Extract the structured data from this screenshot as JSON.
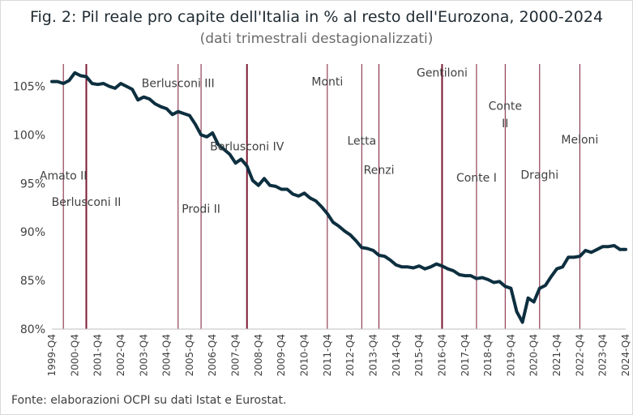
{
  "chart_data": {
    "type": "line",
    "title": "Fig. 2: Pil reale pro capite dell'Italia in % al resto dell'Eurozona, 2000-2024",
    "subtitle": "(dati trimestrali destagionalizzati)",
    "source": "Fonte: elaborazioni OCPI su dati Istat e Eurostat.",
    "ylim": [
      80,
      107.3
    ],
    "yticks": [
      80,
      85,
      90,
      95,
      100,
      105
    ],
    "ytick_format": "percent",
    "xticks": [
      "1999-Q4",
      "2000-Q4",
      "2001-Q4",
      "2002-Q4",
      "2003-Q4",
      "2004-Q4",
      "2005-Q4",
      "2006-Q4",
      "2007-Q4",
      "2008-Q4",
      "2009-Q4",
      "2010-Q4",
      "2011-Q4",
      "2012-Q4",
      "2013-Q4",
      "2014-Q4",
      "2015-Q4",
      "2016-Q4",
      "2017-Q4",
      "2018-Q4",
      "2019-Q4",
      "2020-Q4",
      "2021-Q4",
      "2022-Q4",
      "2023-Q4",
      "2024-Q4"
    ],
    "x_start": "1999-Q4",
    "line_color": "#0d2f3f",
    "gov_line_color": "#7a1a33",
    "series": [
      {
        "values": [
          105.5,
          105.5,
          105.3,
          105.6,
          106.4,
          106.1,
          106.0,
          105.3,
          105.2,
          105.3,
          105.0,
          104.8,
          105.3,
          105.0,
          104.7,
          103.6,
          103.9,
          103.7,
          103.2,
          102.9,
          102.7,
          102.1,
          102.4,
          102.2,
          102.0,
          101.1,
          100.0,
          99.8,
          100.2,
          99.0,
          98.5,
          98.0,
          97.1,
          97.5,
          96.8,
          95.3,
          94.8,
          95.5,
          94.8,
          94.7,
          94.4,
          94.4,
          93.9,
          93.7,
          94.0,
          93.5,
          93.2,
          92.6,
          91.9,
          91.0,
          90.6,
          90.1,
          89.7,
          89.1,
          88.4,
          88.3,
          88.1,
          87.6,
          87.5,
          87.1,
          86.6,
          86.4,
          86.4,
          86.3,
          86.5,
          86.2,
          86.4,
          86.7,
          86.5,
          86.2,
          86.0,
          85.6,
          85.5,
          85.5,
          85.2,
          85.3,
          85.1,
          84.8,
          84.9,
          84.4,
          84.2,
          81.8,
          80.7,
          83.2,
          82.8,
          84.2,
          84.5,
          85.4,
          86.2,
          86.4,
          87.4,
          87.4,
          87.5,
          88.1,
          87.9,
          88.2,
          88.5,
          88.5,
          88.6,
          88.2,
          88.2
        ]
      }
    ],
    "governments": [
      {
        "name": "Amato II",
        "start": "2000-Q2",
        "weight": "thin",
        "label_lines": [
          "Amato II"
        ],
        "label_level": 95.4
      },
      {
        "name": "Berlusconi II",
        "start": "2001-Q2",
        "weight": "thick",
        "label_lines": [
          "Berlusconi II"
        ],
        "label_level": 92.7
      },
      {
        "name": "Berlusconi III",
        "start": "2005-Q2",
        "weight": "thin",
        "label_lines": [
          "Berlusconi III"
        ],
        "label_level": 104.9
      },
      {
        "name": "Prodi II",
        "start": "2006-Q2",
        "weight": "thin",
        "label_lines": [
          "Prodi II"
        ],
        "label_level": 92.0
      },
      {
        "name": "Berlusconi IV",
        "start": "2008-Q2",
        "weight": "thick",
        "label_lines": [
          "Berlusconi IV"
        ],
        "label_level": 98.4
      },
      {
        "name": "Monti",
        "start": "2011-Q4",
        "weight": "thin",
        "label_lines": [
          "Monti"
        ],
        "label_level": 105.1
      },
      {
        "name": "Letta",
        "start": "2013-Q2",
        "weight": "thin",
        "label_lines": [
          "Letta"
        ],
        "label_level": 99.0
      },
      {
        "name": "Renzi",
        "start": "2014-Q1",
        "weight": "thin",
        "label_lines": [
          "Renzi"
        ],
        "label_level": 96.0
      },
      {
        "name": "Gentiloni",
        "start": "2016-Q4",
        "weight": "thick",
        "label_lines": [
          "Gentiloni"
        ],
        "label_level": 106.0
      },
      {
        "name": "Conte I",
        "start": "2018-Q2",
        "weight": "thin",
        "label_lines": [
          "Conte I"
        ],
        "label_level": 95.2
      },
      {
        "name": "Conte II",
        "start": "2019-Q3",
        "weight": "thin",
        "label_lines": [
          "Conte",
          "II"
        ],
        "label_level": [
          102.6,
          100.8
        ]
      },
      {
        "name": "Draghi",
        "start": "2021-Q1",
        "weight": "thin",
        "label_lines": [
          "Draghi"
        ],
        "label_level": 95.5
      },
      {
        "name": "Meloni",
        "start": "2022-Q4",
        "weight": "thin",
        "label_lines": [
          "Meloni"
        ],
        "label_level": 99.1
      }
    ]
  }
}
